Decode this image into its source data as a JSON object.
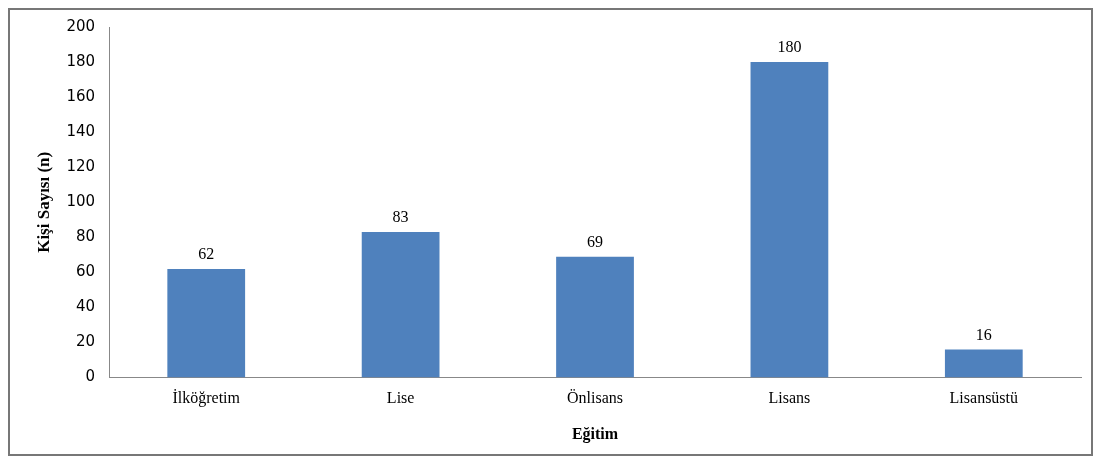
{
  "chart_data": {
    "type": "bar",
    "xlabel": "Eğitim",
    "ylabel": "Kişi Sayısı (n)",
    "categories": [
      "İlköğretim",
      "Lise",
      "Önlisans",
      "Lisans",
      "Lisansüstü"
    ],
    "values": [
      62,
      83,
      69,
      180,
      16
    ],
    "color": "#4f81bd",
    "ylim": [
      0,
      200
    ],
    "yticks": [
      0,
      20,
      40,
      60,
      80,
      100,
      120,
      140,
      160,
      180,
      200
    ],
    "grid": false,
    "legend": false,
    "data_labels": true
  }
}
